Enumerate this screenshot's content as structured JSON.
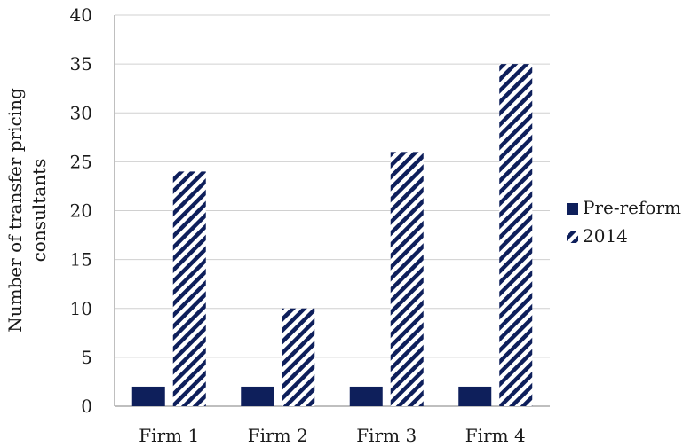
{
  "chart_data": {
    "type": "bar",
    "categories": [
      "Firm 1",
      "Firm 2",
      "Firm 3",
      "Firm 4"
    ],
    "series": [
      {
        "name": "Pre-reform",
        "values": [
          2,
          2,
          2,
          2
        ],
        "color": "#0e1f5b",
        "fill": "solid"
      },
      {
        "name": "2014",
        "values": [
          24,
          10,
          26,
          35
        ],
        "color": "#0e1f5b",
        "fill": "diagonal-hatch"
      }
    ],
    "ylabel_lines": [
      "Number of transfer pricing",
      "consultants"
    ],
    "ylim": [
      0,
      40
    ],
    "yticks": [
      "0",
      "5",
      "10",
      "15",
      "20",
      "25",
      "30",
      "35",
      "40"
    ],
    "grid": true,
    "legend_position": "right"
  }
}
